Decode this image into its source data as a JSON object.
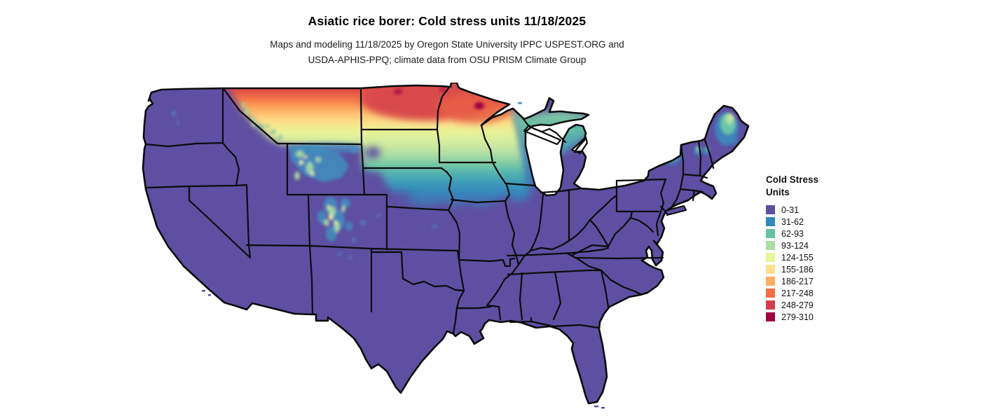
{
  "header": {
    "title": "Asiatic rice borer: Cold stress units 11/18/2025",
    "subtitle_line1": "Maps and modeling 11/18/2025 by Oregon State University IPPC USPEST.ORG and",
    "subtitle_line2": "USDA-APHIS-PPQ; climate data from OSU PRISM Climate Group"
  },
  "legend": {
    "title_line1": "Cold Stress",
    "title_line2": "Units",
    "items": [
      {
        "range": "0-31",
        "color": "#5e4fa2"
      },
      {
        "range": "31-62",
        "color": "#3288bd"
      },
      {
        "range": "62-93",
        "color": "#66c2a5"
      },
      {
        "range": "93-124",
        "color": "#abdda4"
      },
      {
        "range": "124-155",
        "color": "#e6f598"
      },
      {
        "range": "155-186",
        "color": "#fee08b"
      },
      {
        "range": "186-217",
        "color": "#fdae61"
      },
      {
        "range": "217-248",
        "color": "#f46d43"
      },
      {
        "range": "248-279",
        "color": "#d53e4f"
      },
      {
        "range": "279-310",
        "color": "#9e0142"
      }
    ]
  },
  "map": {
    "region": "Continental United States",
    "base_fill": "#5e4fa2",
    "state_border_color": "#0b0b0b",
    "background": "#ffffff"
  }
}
